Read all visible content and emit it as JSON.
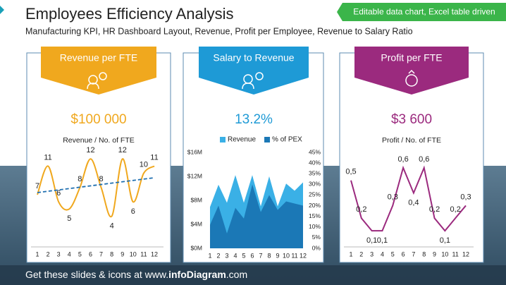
{
  "header": {
    "title": "Employees Efficiency Analysis",
    "subtitle": "Manufacturing KPI, HR Dashboard Layout, Revenue, Profit per Employee, Revenue to Salary Ratio",
    "badge": "Editable data chart, Excel table driven"
  },
  "cards": [
    {
      "title": "Revenue per FTE",
      "kpi": "$100 000"
    },
    {
      "title": "Salary to Revenue",
      "kpi": "13.2%"
    },
    {
      "title": "Profit per FTE",
      "kpi": "$3 600"
    }
  ],
  "chart_data": [
    {
      "type": "line",
      "title": "Revenue / No. of FTE",
      "smooth": true,
      "trendline": true,
      "color": "#f0a81e",
      "trend_color": "#1f6fb0",
      "categories": [
        "1",
        "2",
        "3",
        "4",
        "5",
        "6",
        "7",
        "8",
        "9",
        "10",
        "11",
        "12"
      ],
      "values": [
        7,
        11,
        6,
        5,
        8,
        12,
        8,
        4,
        12,
        6,
        10,
        11
      ],
      "ylim": [
        0,
        14
      ]
    },
    {
      "type": "area",
      "categories": [
        "1",
        "2",
        "3",
        "4",
        "5",
        "6",
        "7",
        "8",
        "9",
        "10",
        "11",
        "12"
      ],
      "series": [
        {
          "name": "Revenue",
          "color": "#3ab0e6",
          "values": [
            6.9,
            10.6,
            7.6,
            12.2,
            7.6,
            12.2,
            7,
            12,
            7,
            10.8,
            9.6,
            11
          ]
        },
        {
          "name": "% of PEX",
          "color": "#1b78b6",
          "axis": "y2",
          "values": [
            11,
            20,
            7,
            19,
            14,
            30,
            17,
            25,
            18,
            22,
            21,
            20
          ]
        }
      ],
      "ylim": [
        0,
        16
      ],
      "yticks": [
        {
          "value": 0,
          "label": "$0M"
        },
        {
          "value": 4,
          "label": "$4M"
        },
        {
          "value": 8,
          "label": "$8M"
        },
        {
          "value": 12,
          "label": "$12M"
        },
        {
          "value": 16,
          "label": "$16M"
        }
      ],
      "y2lim": [
        0,
        45
      ],
      "y2ticks": [
        {
          "value": 0,
          "label": "0%"
        },
        {
          "value": 5,
          "label": "5%"
        },
        {
          "value": 10,
          "label": "10%"
        },
        {
          "value": 15,
          "label": "15%"
        },
        {
          "value": 20,
          "label": "20%"
        },
        {
          "value": 25,
          "label": "25%"
        },
        {
          "value": 30,
          "label": "30%"
        },
        {
          "value": 35,
          "label": "35%"
        },
        {
          "value": 40,
          "label": "40%"
        },
        {
          "value": 45,
          "label": "45%"
        }
      ]
    },
    {
      "type": "line",
      "title": "Profit / No. of FTE",
      "smooth": false,
      "color": "#9b2a7e",
      "categories": [
        "1",
        "2",
        "3",
        "4",
        "5",
        "6",
        "7",
        "8",
        "9",
        "10",
        "11",
        "12"
      ],
      "values": [
        0.5,
        0.2,
        0.1,
        0.1,
        0.3,
        0.6,
        0.4,
        0.6,
        0.2,
        0.1,
        0.2,
        0.3
      ],
      "value_labels": [
        "0,5",
        "0,2",
        "0,1",
        "0,1",
        "0,3",
        "0,6",
        "0,4",
        "0,6",
        "0,2",
        "0,1",
        "0,2",
        "0,3"
      ],
      "ylim": [
        0,
        0.7
      ]
    }
  ],
  "footer": {
    "lead": "Get these slides & icons at www.",
    "brand": "infoDiagram",
    "tail": ".com"
  }
}
